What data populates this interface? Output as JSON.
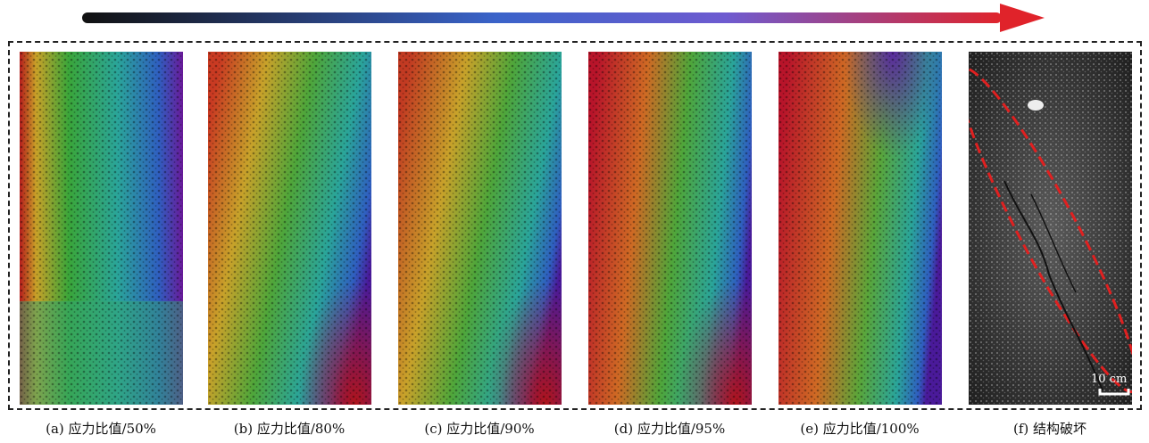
{
  "figure": {
    "arrow": {
      "colors": [
        "#111111",
        "#3a63c9",
        "#6e5bd0",
        "#e0232a"
      ]
    },
    "panels": [
      {
        "id": "a",
        "caption": "(a) 应力比值/50%"
      },
      {
        "id": "b",
        "caption": "(b) 应力比值/80%"
      },
      {
        "id": "c",
        "caption": "(c) 应力比值/90%"
      },
      {
        "id": "d",
        "caption": "(d) 应力比值/95%"
      },
      {
        "id": "e",
        "caption": "(e) 应力比值/100%"
      },
      {
        "id": "f",
        "caption": "(f) 结构破坏"
      }
    ],
    "scale_bar": {
      "label": "10 cm"
    }
  }
}
